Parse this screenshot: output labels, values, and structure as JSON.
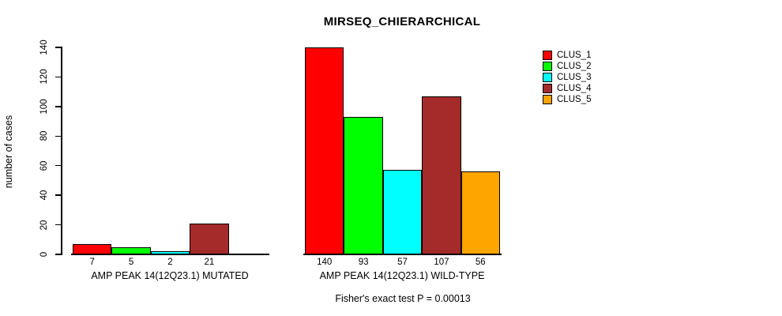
{
  "chart_data": {
    "type": "bar",
    "title": "MIRSEQ_CHIERARCHICAL",
    "ylabel": "number of cases",
    "ylim": [
      0,
      140
    ],
    "yticks": [
      0,
      20,
      40,
      60,
      80,
      100,
      120,
      140
    ],
    "grid": false,
    "legend_position": "right",
    "clusters": [
      "CLUS_1",
      "CLUS_2",
      "CLUS_3",
      "CLUS_4",
      "CLUS_5"
    ],
    "colors": [
      "#FF0000",
      "#00FF00",
      "#00FFFF",
      "#A52A2A",
      "#FFA500"
    ],
    "groups": [
      {
        "label": "AMP PEAK 14(12Q23.1) MUTATED",
        "values": [
          7,
          5,
          2,
          21,
          0
        ],
        "bar_labels": [
          "7",
          "5",
          "2",
          "21",
          ""
        ]
      },
      {
        "label": "AMP PEAK 14(12Q23.1) WILD-TYPE",
        "values": [
          140,
          93,
          57,
          107,
          56
        ],
        "bar_labels": [
          "140",
          "93",
          "57",
          "107",
          "56"
        ]
      }
    ],
    "annotation": "Fisher's exact test P = 0.00013"
  }
}
